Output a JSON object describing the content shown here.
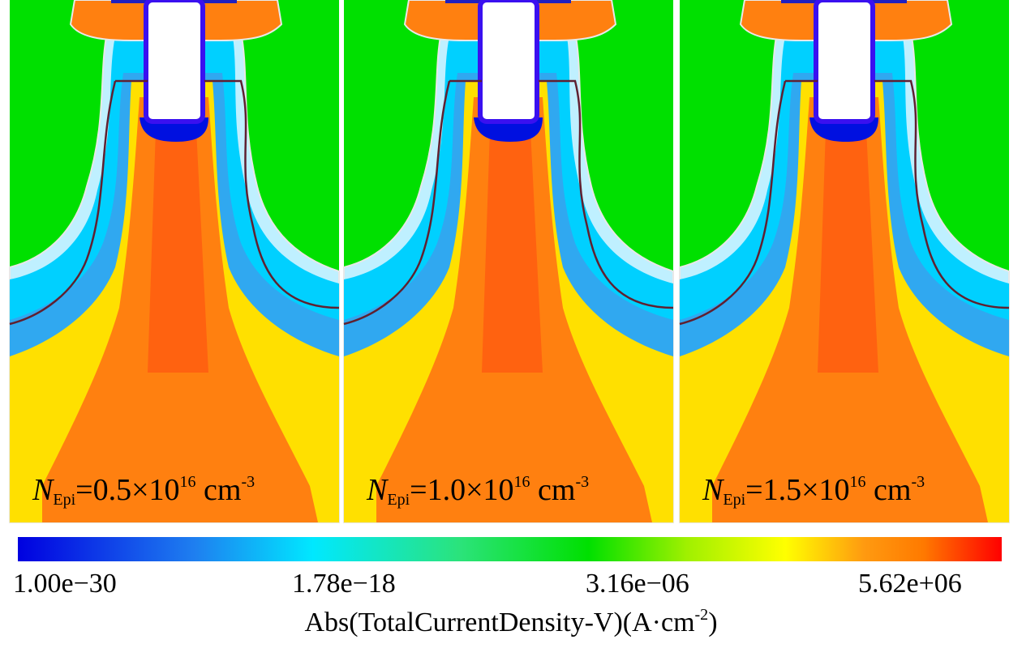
{
  "panels": [
    {
      "symbol": "N",
      "subscript": "Epi",
      "value": "=0.5×10",
      "exponent": "16",
      "unit": "cm",
      "unit_exponent": "-3"
    },
    {
      "symbol": "N",
      "subscript": "Epi",
      "value": "=1.0×10",
      "exponent": "16",
      "unit": "cm",
      "unit_exponent": "-3"
    },
    {
      "symbol": "N",
      "subscript": "Epi",
      "value": "=1.5×10",
      "exponent": "16",
      "unit": "cm",
      "unit_exponent": "-3"
    }
  ],
  "colorbar": {
    "ticks": [
      "1.00e−30",
      "1.78e−18",
      "3.16e−06",
      "5.62e+06"
    ],
    "label": "Abs(TotalCurrentDensity-V)(A·cm",
    "label_exponent": "-2",
    "label_end": ")"
  }
}
